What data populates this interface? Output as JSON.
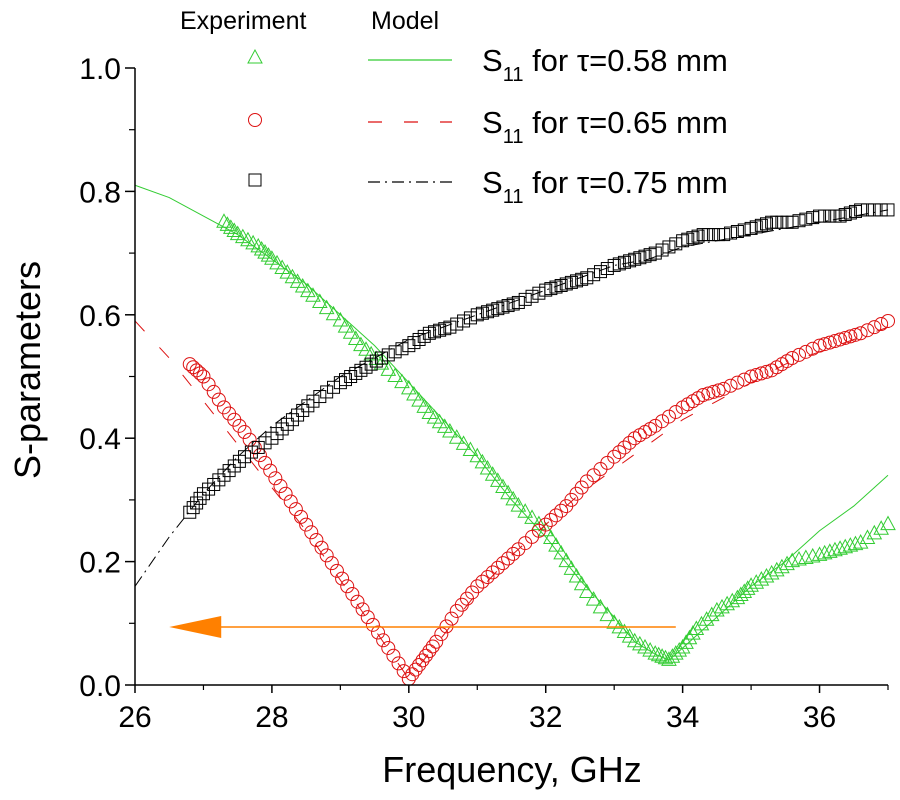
{
  "chart_data": {
    "type": "scatter",
    "title": "",
    "xlabel": "Frequency, GHz",
    "ylabel": "S-parameters",
    "xlim": [
      26,
      37
    ],
    "ylim": [
      0.0,
      1.0
    ],
    "xticks": [
      26,
      28,
      30,
      32,
      34,
      36
    ],
    "xtick_labels": [
      "26",
      "28",
      "30",
      "32",
      "34",
      "36"
    ],
    "xminor": [
      27,
      29,
      31,
      33,
      35,
      37
    ],
    "yticks": [
      0.0,
      0.2,
      0.4,
      0.6,
      0.8,
      1.0
    ],
    "ytick_labels": [
      "0.0",
      "0.2",
      "0.4",
      "0.6",
      "0.8",
      "1.0"
    ],
    "yminor": [
      0.1,
      0.3,
      0.5,
      0.7,
      0.9
    ],
    "grid": false,
    "legend": {
      "placement": "top",
      "column_headers": [
        "Experiment",
        "Model"
      ],
      "entries": [
        {
          "label_main": "S",
          "label_sub": "11",
          "label_rest": " for τ=0.58 mm",
          "marker": "triangle",
          "line": "solid",
          "color": "#33cc33"
        },
        {
          "label_main": "S",
          "label_sub": "11",
          "label_rest": " for τ=0.65 mm",
          "marker": "circle",
          "line": "dashed",
          "color": "#dd1111"
        },
        {
          "label_main": "S",
          "label_sub": "11",
          "label_rest": " for τ=0.75 mm",
          "marker": "square",
          "line": "dashdot",
          "color": "#000000"
        }
      ]
    },
    "series": [
      {
        "name": "Experiment S11 for τ=0.58 mm",
        "kind": "scatter",
        "marker": "triangle",
        "color": "#33cc33",
        "x": [
          27.3,
          27.5,
          27.8,
          28.0,
          28.3,
          28.6,
          29.0,
          29.3,
          29.6,
          30.0,
          30.3,
          30.6,
          31.0,
          31.3,
          31.6,
          32.0,
          32.3,
          32.6,
          33.0,
          33.3,
          33.6,
          33.8,
          34.0,
          34.2,
          34.5,
          34.8,
          35.0,
          35.3,
          35.6,
          36.0,
          36.3,
          36.6,
          37.0
        ],
        "y": [
          0.75,
          0.73,
          0.71,
          0.69,
          0.66,
          0.63,
          0.59,
          0.55,
          0.52,
          0.48,
          0.44,
          0.41,
          0.37,
          0.33,
          0.29,
          0.25,
          0.2,
          0.15,
          0.1,
          0.07,
          0.05,
          0.04,
          0.06,
          0.09,
          0.12,
          0.14,
          0.16,
          0.18,
          0.2,
          0.21,
          0.22,
          0.23,
          0.26
        ]
      },
      {
        "name": "Model S11 for τ=0.58 mm",
        "kind": "line",
        "line": "solid",
        "color": "#33cc33",
        "x": [
          26.0,
          26.5,
          27.0,
          27.5,
          28.0,
          28.5,
          29.0,
          29.5,
          30.0,
          30.5,
          31.0,
          31.5,
          32.0,
          32.5,
          33.0,
          33.3,
          33.6,
          33.8,
          34.0,
          34.5,
          35.0,
          35.5,
          36.0,
          36.5,
          37.0
        ],
        "y": [
          0.81,
          0.79,
          0.76,
          0.73,
          0.69,
          0.65,
          0.6,
          0.55,
          0.49,
          0.43,
          0.37,
          0.3,
          0.24,
          0.17,
          0.11,
          0.07,
          0.05,
          0.04,
          0.06,
          0.11,
          0.16,
          0.2,
          0.25,
          0.29,
          0.34
        ]
      },
      {
        "name": "Experiment S11 for τ=0.65 mm",
        "kind": "scatter",
        "marker": "circle",
        "color": "#dd1111",
        "x": [
          26.8,
          27.0,
          27.3,
          27.6,
          27.9,
          28.2,
          28.5,
          28.8,
          29.1,
          29.4,
          29.7,
          30.0,
          30.2,
          30.4,
          30.7,
          31.0,
          31.3,
          31.6,
          32.0,
          32.3,
          32.6,
          33.0,
          33.3,
          33.6,
          34.0,
          34.3,
          34.6,
          35.0,
          35.3,
          35.6,
          36.0,
          36.3,
          36.6,
          37.0
        ],
        "y": [
          0.52,
          0.5,
          0.45,
          0.41,
          0.36,
          0.31,
          0.26,
          0.21,
          0.16,
          0.11,
          0.06,
          0.01,
          0.04,
          0.07,
          0.12,
          0.16,
          0.19,
          0.22,
          0.26,
          0.29,
          0.33,
          0.37,
          0.4,
          0.42,
          0.45,
          0.47,
          0.48,
          0.5,
          0.51,
          0.53,
          0.55,
          0.56,
          0.57,
          0.59
        ]
      },
      {
        "name": "Model S11 for τ=0.65 mm",
        "kind": "line",
        "line": "dashed",
        "color": "#dd1111",
        "x": [
          26.0,
          26.5,
          27.0,
          27.5,
          28.0,
          28.5,
          29.0,
          29.5,
          30.0,
          30.5,
          31.0,
          31.5,
          32.0,
          32.5,
          33.0,
          33.5,
          34.0,
          34.5,
          35.0,
          35.5,
          36.0,
          36.5,
          37.0
        ],
        "y": [
          0.59,
          0.53,
          0.46,
          0.39,
          0.32,
          0.25,
          0.17,
          0.09,
          0.01,
          0.08,
          0.15,
          0.21,
          0.26,
          0.31,
          0.35,
          0.39,
          0.43,
          0.46,
          0.49,
          0.52,
          0.54,
          0.56,
          0.58
        ]
      },
      {
        "name": "Experiment S11 for τ=0.75 mm",
        "kind": "scatter",
        "marker": "square",
        "color": "#000000",
        "x": [
          26.8,
          27.0,
          27.3,
          27.6,
          28.0,
          28.3,
          28.6,
          29.0,
          29.3,
          29.6,
          30.0,
          30.3,
          30.6,
          31.0,
          31.3,
          31.6,
          32.0,
          32.3,
          32.6,
          33.0,
          33.3,
          33.6,
          34.0,
          34.3,
          34.6,
          35.0,
          35.3,
          35.6,
          36.0,
          36.3,
          36.6,
          37.0
        ],
        "y": [
          0.28,
          0.31,
          0.34,
          0.37,
          0.4,
          0.43,
          0.46,
          0.49,
          0.51,
          0.53,
          0.55,
          0.57,
          0.58,
          0.6,
          0.61,
          0.62,
          0.64,
          0.65,
          0.66,
          0.68,
          0.69,
          0.7,
          0.72,
          0.73,
          0.73,
          0.74,
          0.75,
          0.75,
          0.76,
          0.76,
          0.77,
          0.77
        ]
      },
      {
        "name": "Model S11 for τ=0.75 mm",
        "kind": "line",
        "line": "dashdot",
        "color": "#000000",
        "x": [
          26.0,
          26.5,
          27.0,
          27.5,
          28.0,
          28.5,
          29.0,
          29.5,
          30.0,
          30.5,
          31.0,
          31.5,
          32.0,
          32.5,
          33.0,
          33.5,
          34.0,
          34.5,
          35.0,
          35.5,
          36.0,
          36.5,
          37.0
        ],
        "y": [
          0.16,
          0.24,
          0.31,
          0.37,
          0.42,
          0.46,
          0.5,
          0.53,
          0.56,
          0.58,
          0.6,
          0.62,
          0.64,
          0.66,
          0.68,
          0.69,
          0.71,
          0.72,
          0.73,
          0.74,
          0.75,
          0.76,
          0.77
        ]
      }
    ],
    "annotations": [
      {
        "type": "arrow",
        "direction": "left",
        "color": "#ff8000",
        "y": 0.094,
        "x_start": 33.9,
        "x_end": 26.5
      }
    ]
  }
}
